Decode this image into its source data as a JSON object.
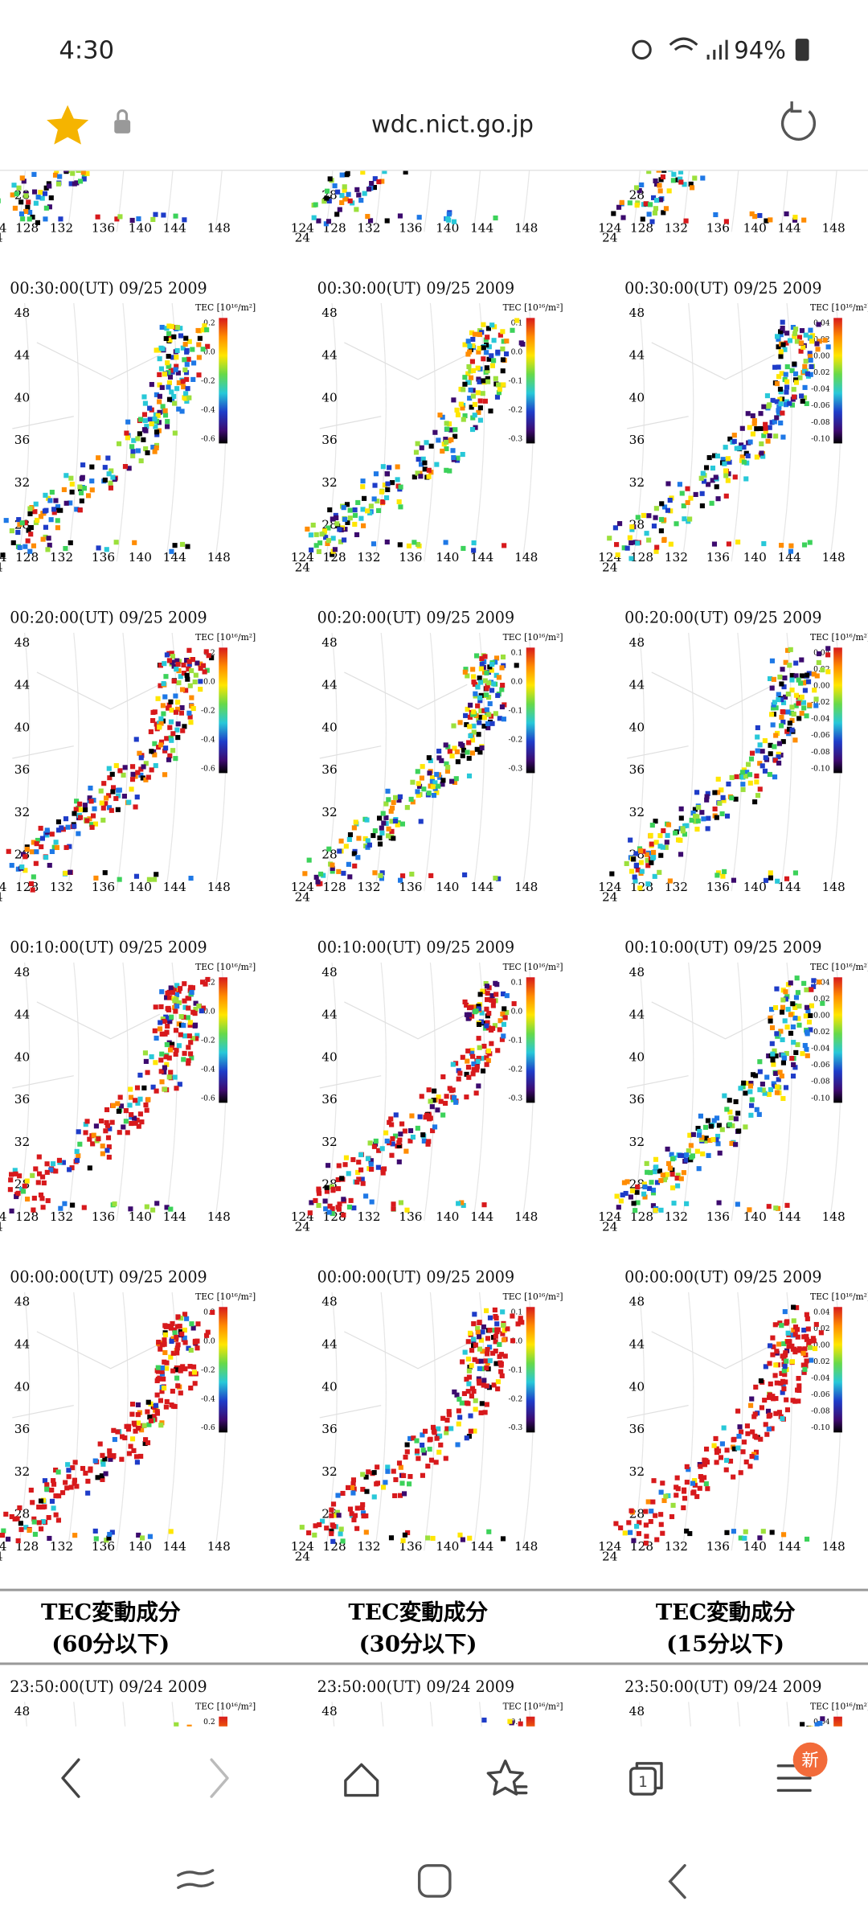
{
  "status_bar": {
    "time": "4:30",
    "battery": "94%"
  },
  "browser": {
    "url": "wdc.nict.go.jp"
  },
  "panels": {
    "rows": [
      {
        "time": "00:30:00(UT)  09/25 2009"
      },
      {
        "time": "00:20:00(UT)  09/25 2009"
      },
      {
        "time": "00:10:00(UT)  09/25 2009"
      },
      {
        "time": "00:00:00(UT)  09/25 2009"
      },
      {
        "time": "23:50:00(UT)  09/24 2009"
      }
    ],
    "colorbar_title": "TEC [10¹⁶/m²]",
    "lat_labels": [
      "48",
      "44",
      "40",
      "36",
      "32",
      "28"
    ],
    "lon_labels": [
      "124",
      "128",
      "132",
      "136",
      "140",
      "144",
      "148"
    ],
    "corner_label": "24",
    "columns": [
      {
        "heading": "TEC変動成分",
        "subheading": "(60分以下)",
        "colorbar_labels": [
          "0.2",
          "0.0",
          "-0.2",
          "-0.4",
          "-0.6"
        ]
      },
      {
        "heading": "TEC変動成分",
        "subheading": "(30分以下)",
        "colorbar_labels": [
          "0.1",
          "0.0",
          "-0.1",
          "-0.2",
          "-0.3"
        ]
      },
      {
        "heading": "TEC変動成分",
        "subheading": "(15分以下)",
        "colorbar_labels": [
          "0.04",
          "0.02",
          "0.00",
          "-0.02",
          "-0.04",
          "-0.06",
          "-0.08",
          "-0.10"
        ]
      }
    ]
  },
  "bottom_nav": {
    "badge": "新"
  }
}
